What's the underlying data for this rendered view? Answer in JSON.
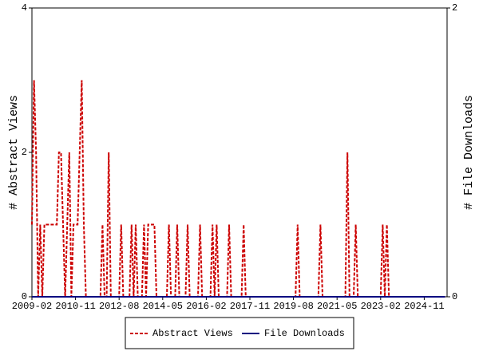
{
  "chart_data": {
    "type": "line",
    "y_label": "# Abstract Views",
    "y2_label": "# File Downloads",
    "x": [
      "2009-02",
      "2009-03",
      "2009-04",
      "2009-05",
      "2009-06",
      "2009-07",
      "2009-08",
      "2009-09",
      "2009-10",
      "2009-11",
      "2009-12",
      "2010-01",
      "2010-02",
      "2010-03",
      "2010-04",
      "2010-05",
      "2010-06",
      "2010-07",
      "2010-08",
      "2010-09",
      "2010-10",
      "2010-11",
      "2010-12",
      "2011-01",
      "2011-02",
      "2011-03",
      "2011-04",
      "2011-05",
      "2011-06",
      "2011-07",
      "2011-08",
      "2011-09",
      "2011-10",
      "2011-11",
      "2011-12",
      "2012-01",
      "2012-02",
      "2012-03",
      "2012-04",
      "2012-05",
      "2012-06",
      "2012-07",
      "2012-08",
      "2012-09",
      "2012-10",
      "2012-11",
      "2012-12",
      "2013-01",
      "2013-02",
      "2013-03",
      "2013-04",
      "2013-05",
      "2013-06",
      "2013-07",
      "2013-08",
      "2013-09",
      "2013-10",
      "2013-11",
      "2013-12",
      "2014-01",
      "2014-02",
      "2014-03",
      "2014-04",
      "2014-05",
      "2014-06",
      "2014-07",
      "2014-08",
      "2014-09",
      "2014-10",
      "2014-11",
      "2014-12",
      "2015-01",
      "2015-02",
      "2015-03",
      "2015-04",
      "2015-05",
      "2015-06",
      "2015-07",
      "2015-08",
      "2015-09",
      "2015-10",
      "2015-11",
      "2015-12",
      "2016-01",
      "2016-02",
      "2016-03",
      "2016-04",
      "2016-05",
      "2016-06",
      "2016-07",
      "2016-08",
      "2016-09",
      "2016-10",
      "2016-11",
      "2016-12",
      "2017-01",
      "2017-02",
      "2017-03",
      "2017-04",
      "2017-05",
      "2017-06",
      "2017-07",
      "2017-08",
      "2017-09",
      "2017-10",
      "2017-11",
      "2017-12",
      "2018-01",
      "2018-02",
      "2018-03",
      "2018-04",
      "2018-05",
      "2018-06",
      "2018-07",
      "2018-08",
      "2018-09",
      "2018-10",
      "2018-11",
      "2018-12",
      "2019-01",
      "2019-02",
      "2019-03",
      "2019-04",
      "2019-05",
      "2019-06",
      "2019-07",
      "2019-08",
      "2019-09",
      "2019-10",
      "2019-11",
      "2019-12",
      "2020-01",
      "2020-02",
      "2020-03",
      "2020-04",
      "2020-05",
      "2020-06",
      "2020-07",
      "2020-08",
      "2020-09",
      "2020-10",
      "2020-11",
      "2020-12",
      "2021-01",
      "2021-02",
      "2021-03",
      "2021-04",
      "2021-05",
      "2021-06",
      "2021-07",
      "2021-08",
      "2021-09",
      "2021-10",
      "2021-11",
      "2021-12",
      "2022-01",
      "2022-02",
      "2022-03",
      "2022-04",
      "2022-05",
      "2022-06",
      "2022-07",
      "2022-08",
      "2022-09",
      "2022-10",
      "2022-11",
      "2022-12",
      "2023-01",
      "2023-02",
      "2023-03",
      "2023-04",
      "2023-05",
      "2023-06",
      "2023-07",
      "2023-08",
      "2023-09",
      "2023-10",
      "2023-11",
      "2023-12",
      "2024-01",
      "2024-02",
      "2024-03",
      "2024-04",
      "2024-05",
      "2024-06",
      "2024-07",
      "2024-08",
      "2024-09",
      "2024-10",
      "2024-11",
      "2024-12",
      "2025-01",
      "2025-02",
      "2025-03",
      "2025-04",
      "2025-05",
      "2025-06",
      "2025-07",
      "2025-08",
      "2025-09"
    ],
    "series": [
      {
        "name": "Abstract Views",
        "color": "#cc0000",
        "dash": true,
        "values": [
          1,
          3,
          2,
          0,
          1,
          0,
          1,
          1,
          1,
          1,
          1,
          1,
          1,
          2,
          2,
          1,
          0,
          1,
          2,
          0,
          1,
          1,
          1,
          2,
          3,
          1,
          0,
          0,
          0,
          0,
          0,
          0,
          0,
          0,
          1,
          0,
          0,
          2,
          0,
          0,
          0,
          0,
          0,
          1,
          0,
          0,
          0,
          0,
          1,
          0,
          1,
          0,
          0,
          0,
          1,
          0,
          1,
          1,
          1,
          1,
          0,
          0,
          0,
          0,
          0,
          0,
          1,
          0,
          0,
          0,
          1,
          0,
          0,
          0,
          0,
          1,
          0,
          0,
          0,
          0,
          0,
          1,
          0,
          0,
          0,
          0,
          0,
          1,
          0,
          1,
          0,
          0,
          0,
          0,
          0,
          1,
          0,
          0,
          0,
          0,
          0,
          0,
          1,
          0,
          0,
          0,
          0,
          0,
          0,
          0,
          0,
          0,
          0,
          0,
          0,
          0,
          0,
          0,
          0,
          0,
          0,
          0,
          0,
          0,
          0,
          0,
          0,
          0,
          1,
          0,
          0,
          0,
          0,
          0,
          0,
          0,
          0,
          0,
          0,
          1,
          0,
          0,
          0,
          0,
          0,
          0,
          0,
          0,
          0,
          0,
          0,
          0,
          2,
          0,
          0,
          0,
          1,
          0,
          0,
          0,
          0,
          0,
          0,
          0,
          0,
          0,
          0,
          0,
          0,
          1,
          0,
          1,
          0,
          0,
          0,
          0,
          0,
          0,
          0,
          0,
          0,
          0,
          0,
          0,
          0,
          0,
          0,
          0,
          0,
          0,
          0,
          0,
          0,
          0,
          0,
          0,
          0,
          0,
          0,
          0
        ]
      },
      {
        "name": "File Downloads",
        "color": "#000080",
        "dash": false,
        "axis": "y2",
        "values": [
          0,
          0,
          0,
          0,
          0,
          0,
          0,
          0,
          0,
          0,
          0,
          0,
          0,
          0,
          0,
          0,
          0,
          0,
          0,
          0,
          0,
          0,
          0,
          0,
          0,
          0,
          0,
          0,
          0,
          0,
          0,
          0,
          0,
          0,
          0,
          0,
          0,
          0,
          0,
          0,
          0,
          0,
          0,
          0,
          0,
          0,
          0,
          0,
          0,
          0,
          0,
          0,
          0,
          0,
          0,
          0,
          0,
          0,
          0,
          0,
          0,
          0,
          0,
          0,
          0,
          0,
          0,
          0,
          0,
          0,
          0,
          0,
          0,
          0,
          0,
          0,
          0,
          0,
          0,
          0,
          0,
          0,
          0,
          0,
          0,
          0,
          0,
          0,
          0,
          0,
          0,
          0,
          0,
          0,
          0,
          0,
          0,
          0,
          0,
          0,
          0,
          0,
          0,
          0,
          0,
          0,
          0,
          0,
          0,
          0,
          0,
          0,
          0,
          0,
          0,
          0,
          0,
          0,
          0,
          0,
          0,
          0,
          0,
          0,
          0,
          0,
          0,
          0,
          0,
          0,
          0,
          0,
          0,
          0,
          0,
          0,
          0,
          0,
          0,
          0,
          0,
          0,
          0,
          0,
          0,
          0,
          0,
          0,
          0,
          0,
          0,
          0,
          0,
          0,
          0,
          0,
          0,
          0,
          0,
          0,
          0,
          0,
          0,
          0,
          0,
          0,
          0,
          0,
          0,
          0,
          0,
          0,
          0,
          0,
          0,
          0,
          0,
          0,
          0,
          0,
          0,
          0,
          0,
          0,
          0,
          0,
          0,
          0,
          0,
          0,
          0,
          0,
          0,
          0,
          0,
          0,
          0,
          0,
          0,
          0
        ]
      }
    ],
    "xticks": [
      "2009-02",
      "2010-11",
      "2012-08",
      "2014-05",
      "2016-02",
      "2017-11",
      "2019-08",
      "2021-05",
      "2023-02",
      "2024-11"
    ],
    "ylim": [
      0,
      4
    ],
    "yticks": [
      0,
      2,
      4
    ],
    "y2lim": [
      0,
      2
    ],
    "y2ticks": [
      0,
      2
    ],
    "legend": "bottom"
  }
}
